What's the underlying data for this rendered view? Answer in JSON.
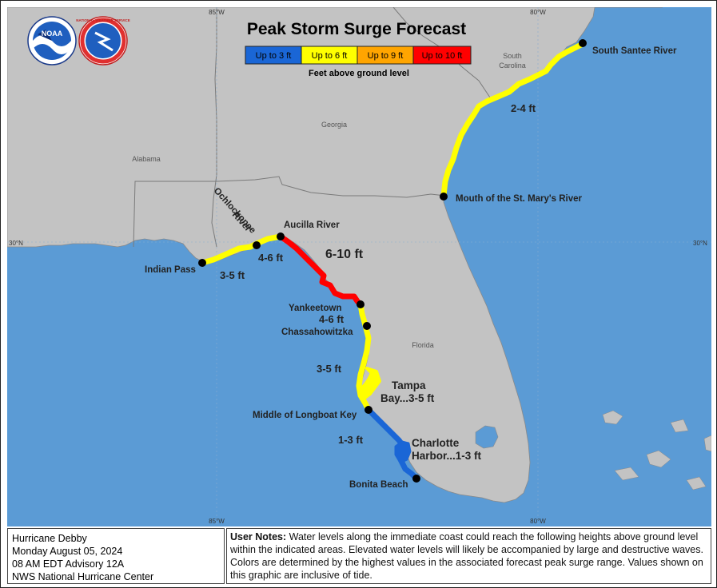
{
  "title": "Peak Storm Surge Forecast",
  "legend": {
    "items": [
      {
        "label": "Up to 3 ft",
        "color": "#1a66d6"
      },
      {
        "label": "Up to 6 ft",
        "color": "#ffff00"
      },
      {
        "label": "Up to 9 ft",
        "color": "#ffa500"
      },
      {
        "label": "Up to 10 ft",
        "color": "#ff0000"
      }
    ],
    "caption": "Feet above ground level"
  },
  "logos": {
    "noaa": {
      "icon": "noaa-logo",
      "text": "NOAA"
    },
    "nws": {
      "icon": "nws-logo",
      "text": "NATIONAL WEATHER SERVICE"
    }
  },
  "graticule": {
    "lon_top_85": "85°W",
    "lon_top_80": "80°W",
    "lon_bottom_85": "85°W",
    "lon_bottom_80": "80°W",
    "lat_left_30": "30°N",
    "lat_right_30": "30°N"
  },
  "regions": {
    "alabama": "Alabama",
    "georgia": "Georgia",
    "south_carolina_1": "South",
    "south_carolina_2": "Carolina",
    "florida": "Florida"
  },
  "points": {
    "south_santee": "South Santee River",
    "st_marys": "Mouth of the St. Mary's River",
    "aucilla": "Aucilla River",
    "indian_pass": "Indian Pass",
    "ochlockonee_1": "Ochlockonee",
    "ochlockonee_2": "River",
    "yankeetown": "Yankeetown",
    "chassahowitzka": "Chassahowitzka",
    "longboat": "Middle of Longboat Key",
    "bonita": "Bonita Beach"
  },
  "surge_labels": {
    "sc_ga": "2-4 ft",
    "big_bend": "6-10 ft",
    "ochlockonee_aucilla": "4-6 ft",
    "indian_ochlockonee": "3-5 ft",
    "yankeetown_chass": "4-6 ft",
    "chass_longboat": "3-5 ft",
    "tampa_1": "Tampa",
    "tampa_2": "Bay...3-5 ft",
    "longboat_bonita": "1-3 ft",
    "charlotte_1": "Charlotte",
    "charlotte_2": "Harbor...1-3 ft"
  },
  "footer": {
    "storm_name": "Hurricane Debby",
    "date": "Monday August 05, 2024",
    "advisory": "08 AM EDT Advisory 12A",
    "agency": "NWS National Hurricane Center",
    "notes_label": "User Notes:",
    "notes_text": "Water levels along the immediate coast could reach the following heights above ground level within the indicated areas. Elevated water levels will likely be accompanied by large and destructive waves. Colors are determined by the highest values in the associated forecast peak surge range. Values shown on this graphic are inclusive of tide."
  }
}
